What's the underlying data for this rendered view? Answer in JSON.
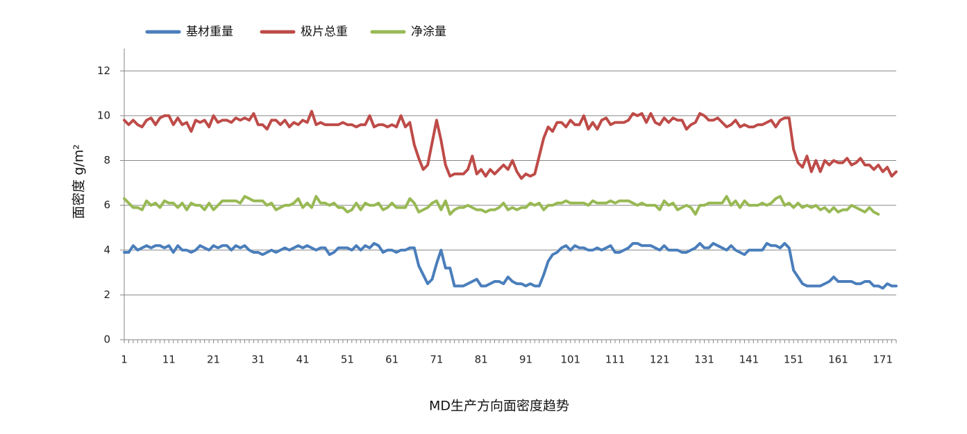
{
  "chart_data": {
    "type": "line",
    "xlabel": "MD生产方向面密度趋势",
    "ylabel": "面密度 g/m²",
    "ylim": [
      0,
      13
    ],
    "yticks": [
      0,
      2,
      4,
      6,
      8,
      10,
      12
    ],
    "xlim": [
      1,
      174
    ],
    "xticks": [
      1,
      11,
      21,
      31,
      41,
      51,
      61,
      71,
      81,
      91,
      101,
      111,
      121,
      131,
      141,
      151,
      161,
      171
    ],
    "grid": true,
    "legend_position": "top-left",
    "x": "1..174 (one point per sample index)",
    "series": [
      {
        "name": "基材重量",
        "color": "#4A7EBB",
        "values": [
          3.9,
          3.9,
          4.2,
          4.0,
          4.1,
          4.2,
          4.1,
          4.2,
          4.2,
          4.1,
          4.2,
          3.9,
          4.2,
          4.0,
          4.0,
          3.9,
          4.0,
          4.2,
          4.1,
          4.0,
          4.2,
          4.1,
          4.2,
          4.2,
          4.0,
          4.2,
          4.1,
          4.2,
          4.0,
          3.9,
          3.9,
          3.8,
          3.9,
          4.0,
          3.9,
          4.0,
          4.1,
          4.0,
          4.1,
          4.2,
          4.1,
          4.2,
          4.1,
          4.0,
          4.1,
          4.1,
          3.8,
          3.9,
          4.1,
          4.1,
          4.1,
          4.0,
          4.2,
          4.0,
          4.2,
          4.1,
          4.3,
          4.2,
          3.9,
          4.0,
          4.0,
          3.9,
          4.0,
          4.0,
          4.1,
          4.1,
          3.3,
          2.9,
          2.5,
          2.7,
          3.4,
          4.0,
          3.2,
          3.2,
          2.4,
          2.4,
          2.4,
          2.5,
          2.6,
          2.7,
          2.4,
          2.4,
          2.5,
          2.6,
          2.6,
          2.5,
          2.8,
          2.6,
          2.5,
          2.5,
          2.4,
          2.5,
          2.4,
          2.4,
          2.9,
          3.5,
          3.8,
          3.9,
          4.1,
          4.2,
          4.0,
          4.2,
          4.1,
          4.1,
          4.0,
          4.0,
          4.1,
          4.0,
          4.1,
          4.2,
          3.9,
          3.9,
          4.0,
          4.1,
          4.3,
          4.3,
          4.2,
          4.2,
          4.2,
          4.1,
          4.0,
          4.2,
          4.0,
          4.0,
          4.0,
          3.9,
          3.9,
          4.0,
          4.1,
          4.3,
          4.1,
          4.1,
          4.3,
          4.2,
          4.1,
          4.0,
          4.2,
          4.0,
          3.9,
          3.8,
          4.0,
          4.0,
          4.0,
          4.0,
          4.3,
          4.2,
          4.2,
          4.1,
          4.3,
          4.1,
          3.1,
          2.8,
          2.5,
          2.4,
          2.4,
          2.4,
          2.4,
          2.5,
          2.6,
          2.8,
          2.6,
          2.6,
          2.6,
          2.6,
          2.5,
          2.5,
          2.6,
          2.6,
          2.4,
          2.4,
          2.3,
          2.5,
          2.4,
          2.4
        ]
      },
      {
        "name": "极片总重",
        "color": "#BE4B48",
        "values": [
          9.8,
          9.6,
          9.8,
          9.6,
          9.5,
          9.8,
          9.9,
          9.6,
          9.9,
          10.0,
          10.0,
          9.6,
          9.9,
          9.6,
          9.7,
          9.3,
          9.8,
          9.7,
          9.8,
          9.5,
          10.0,
          9.7,
          9.8,
          9.8,
          9.7,
          9.9,
          9.8,
          9.9,
          9.8,
          10.1,
          9.6,
          9.6,
          9.4,
          9.8,
          9.8,
          9.6,
          9.8,
          9.5,
          9.7,
          9.6,
          9.8,
          9.7,
          10.2,
          9.6,
          9.7,
          9.6,
          9.6,
          9.6,
          9.6,
          9.7,
          9.6,
          9.6,
          9.5,
          9.6,
          9.6,
          10.0,
          9.5,
          9.6,
          9.6,
          9.5,
          9.6,
          9.5,
          10.0,
          9.5,
          9.7,
          8.7,
          8.1,
          7.6,
          7.8,
          8.8,
          9.8,
          8.9,
          7.8,
          7.3,
          7.4,
          7.4,
          7.4,
          7.6,
          8.2,
          7.4,
          7.6,
          7.3,
          7.6,
          7.4,
          7.6,
          7.8,
          7.6,
          8.0,
          7.5,
          7.2,
          7.4,
          7.3,
          7.4,
          8.2,
          9.0,
          9.5,
          9.3,
          9.7,
          9.7,
          9.5,
          9.8,
          9.6,
          9.6,
          10.0,
          9.4,
          9.7,
          9.4,
          9.8,
          9.9,
          9.6,
          9.7,
          9.7,
          9.7,
          9.8,
          10.1,
          10.0,
          10.1,
          9.7,
          10.1,
          9.7,
          9.6,
          9.9,
          9.7,
          9.9,
          9.8,
          9.8,
          9.4,
          9.6,
          9.7,
          10.1,
          10.0,
          9.8,
          9.8,
          9.9,
          9.7,
          9.5,
          9.6,
          9.8,
          9.5,
          9.6,
          9.5,
          9.5,
          9.6,
          9.6,
          9.7,
          9.8,
          9.5,
          9.8,
          9.9,
          9.9,
          8.5,
          7.9,
          7.7,
          8.2,
          7.5,
          8.0,
          7.5,
          8.0,
          7.8,
          8.0,
          7.9,
          7.9,
          8.1,
          7.8,
          7.9,
          8.1,
          7.8,
          7.8,
          7.6,
          7.8,
          7.5,
          7.7,
          7.3,
          7.5
        ]
      },
      {
        "name": "净涂量",
        "color": "#98B954",
        "values": [
          6.3,
          6.1,
          5.9,
          5.9,
          5.8,
          6.2,
          6.0,
          6.1,
          5.9,
          6.2,
          6.1,
          6.1,
          5.9,
          6.1,
          5.8,
          6.1,
          6.0,
          6.0,
          5.8,
          6.1,
          5.8,
          6.0,
          6.2,
          6.2,
          6.2,
          6.2,
          6.1,
          6.4,
          6.3,
          6.2,
          6.2,
          6.2,
          6.0,
          6.1,
          5.8,
          5.9,
          6.0,
          6.0,
          6.1,
          6.3,
          5.9,
          6.1,
          5.9,
          6.4,
          6.1,
          6.1,
          6.0,
          6.1,
          5.9,
          5.9,
          5.7,
          5.8,
          6.1,
          5.8,
          6.1,
          6.0,
          6.0,
          6.1,
          5.8,
          5.9,
          6.1,
          5.9,
          5.9,
          5.9,
          6.3,
          6.1,
          5.7,
          5.8,
          5.9,
          6.1,
          6.2,
          5.8,
          6.2,
          5.6,
          5.8,
          5.9,
          5.9,
          6.0,
          5.9,
          5.8,
          5.8,
          5.7,
          5.8,
          5.8,
          5.9,
          6.1,
          5.8,
          5.9,
          5.8,
          5.9,
          5.9,
          6.1,
          6.0,
          6.1,
          5.8,
          6.0,
          6.0,
          6.1,
          6.1,
          6.2,
          6.1,
          6.1,
          6.1,
          6.1,
          6.0,
          6.2,
          6.1,
          6.1,
          6.1,
          6.2,
          6.1,
          6.2,
          6.2,
          6.2,
          6.1,
          6.0,
          6.1,
          6.0,
          6.0,
          6.0,
          5.8,
          6.2,
          6.0,
          6.1,
          5.8,
          5.9,
          6.0,
          5.9,
          5.6,
          6.0,
          6.0,
          6.1,
          6.1,
          6.1,
          6.1,
          6.4,
          6.0,
          6.2,
          5.9,
          6.2,
          6.0,
          6.0,
          6.0,
          6.1,
          6.0,
          6.1,
          6.3,
          6.4,
          6.0,
          6.1,
          5.9,
          6.1,
          5.9,
          6.0,
          5.9,
          6.0,
          5.8,
          5.9,
          5.7,
          5.9,
          5.7,
          5.8,
          5.8,
          6.0,
          5.9,
          5.8,
          5.7,
          5.9,
          5.7,
          5.6
        ]
      }
    ]
  }
}
